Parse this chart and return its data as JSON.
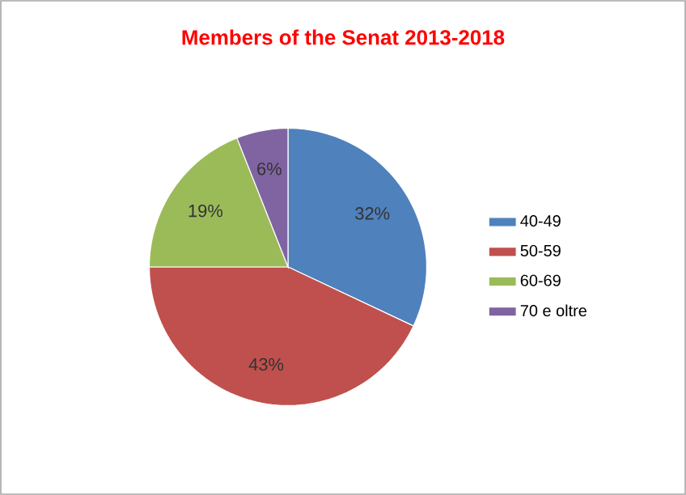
{
  "chart_data": {
    "type": "pie",
    "title": "Members of the Senat 2013-2018",
    "categories": [
      "40-49",
      "50-59",
      "60-69",
      "70 e oltre"
    ],
    "values": [
      32,
      43,
      19,
      6
    ],
    "value_labels": [
      "32%",
      "43%",
      "19%",
      "6%"
    ],
    "colors": [
      "#4f81bd",
      "#c0504d",
      "#9bbb59",
      "#8064a2"
    ],
    "legend": "right"
  }
}
